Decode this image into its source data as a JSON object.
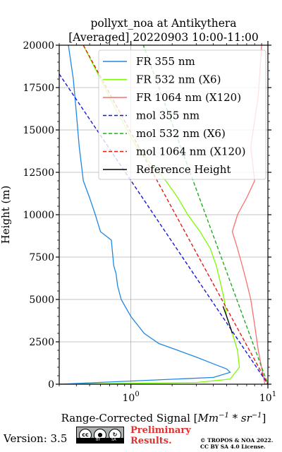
{
  "chart_data": {
    "type": "line",
    "title": "pollyxt_noa at Antikythera",
    "subtitle": "[Averaged] 20220903 10:00-11:00",
    "ylabel": "Height (m)",
    "xlabel_main": "Range-Corrected Signal [",
    "xlabel_unit": "Mm",
    "xlabel_exp1": "−1",
    "xlabel_mid": " * sr",
    "xlabel_exp2": "−1",
    "xlabel_end": "]",
    "xscale": "log",
    "xlim": [
      0.3,
      10
    ],
    "ylim": [
      0,
      20000
    ],
    "xticks": [
      {
        "value": 1,
        "base": "10",
        "exp": "0"
      },
      {
        "value": 10,
        "base": "10",
        "exp": "1"
      }
    ],
    "yticks": [
      0,
      2500,
      5000,
      7500,
      10000,
      12500,
      15000,
      17500,
      20000
    ],
    "ytick_labels": [
      "0",
      "2500",
      "5000",
      "7500",
      "10000",
      "12500",
      "15000",
      "17500",
      "20000"
    ],
    "grid": true,
    "legend_position": "top-right",
    "series": [
      {
        "name": "FR 355 nm",
        "color": "#1e88e5",
        "style": "solid",
        "x": [
          0.3,
          4.0,
          5.3,
          5.0,
          4.0,
          3.0,
          2.2,
          1.6,
          1.25,
          1.0,
          0.85,
          0.8,
          0.78,
          0.75,
          0.72,
          0.6,
          0.55,
          0.5,
          0.45,
          0.42,
          0.4,
          0.38,
          0.35
        ],
        "y": [
          0,
          400,
          700,
          900,
          1200,
          1600,
          2000,
          2400,
          3000,
          4000,
          5000,
          5800,
          6500,
          7000,
          8500,
          9000,
          10000,
          11000,
          12000,
          14000,
          16000,
          18000,
          20000
        ]
      },
      {
        "name": "FR 532 nm (X6)",
        "color": "#7cfc00",
        "style": "solid",
        "x": [
          0.3,
          3.0,
          5.3,
          6.2,
          6.0,
          5.5,
          5.0,
          4.8,
          4.5,
          4.2,
          3.8,
          3.2,
          2.6,
          2.2,
          1.8,
          1.4,
          1.1,
          0.8,
          0.6,
          0.45
        ],
        "y": [
          0,
          100,
          300,
          1000,
          2000,
          3000,
          4000,
          5000,
          6000,
          7000,
          8000,
          9000,
          10000,
          11000,
          12000,
          13000,
          14000,
          16000,
          18000,
          20000
        ]
      },
      {
        "name": "FR 1064 nm (X120)",
        "color": "#f87171",
        "style": "solid",
        "x": [
          9.5,
          8.5,
          8.0,
          7.5,
          7.0,
          6.5,
          6.0,
          5.5,
          6.0,
          7.0,
          8.0,
          7.5,
          8.5,
          9.0
        ],
        "y": [
          0,
          2000,
          3500,
          5000,
          6000,
          7000,
          8000,
          9000,
          10000,
          11000,
          12000,
          14000,
          17000,
          20000
        ]
      },
      {
        "name": "mol 355 nm",
        "color": "#1616d6",
        "style": "dashed",
        "x": [
          0.3,
          10
        ],
        "y": [
          18300,
          0
        ]
      },
      {
        "name": "mol 532 nm (X6)",
        "color": "#22aa22",
        "style": "dashed",
        "x": [
          0.3,
          10
        ],
        "y": [
          33500,
          0
        ]
      },
      {
        "name": "mol 1064 nm (X120)",
        "color": "#e21b1b",
        "style": "dashed",
        "x": [
          0.45,
          10
        ],
        "y": [
          20000,
          0
        ]
      },
      {
        "name": "Reference Height",
        "color": "#000000",
        "style": "solid",
        "x": [
          4.7,
          5.0,
          5.2,
          5.3,
          5.4,
          5.5
        ],
        "y": [
          4600,
          4000,
          3600,
          3400,
          3200,
          3000
        ]
      }
    ]
  },
  "footer": {
    "version_label": "Version: 3.5",
    "preliminary_line1": "Preliminary",
    "preliminary_line2": "Results.",
    "copyright_line1": "© TROPOS & NOA 2022.",
    "copyright_line2": "CC BY SA 4.0 License.",
    "cc_badge": {
      "cc": "cc",
      "by": "BY",
      "sa": "SA"
    }
  }
}
